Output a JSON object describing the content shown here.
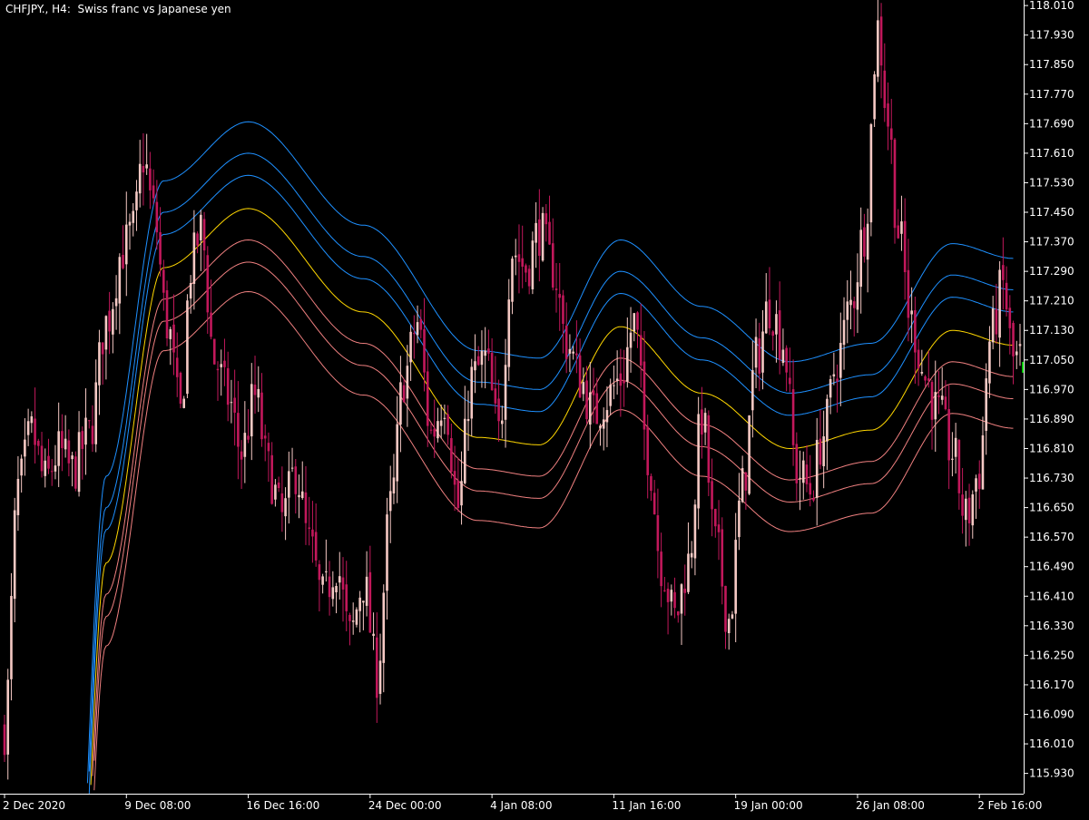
{
  "header": {
    "symbol": "CHFJPY.",
    "timeframe": "H4",
    "description": "Swiss franc vs Japanese yen",
    "title_text": "CHFJPY., H4:  Swiss franc vs Japanese yen"
  },
  "colors": {
    "background": "#000000",
    "axis": "#ffffff",
    "candle_bull": "#f5c9c4",
    "candle_bear": "#c2185b",
    "band_upper": "#1e90ff",
    "band_middle": "#ffd700",
    "band_lower": "#f08080",
    "last_marker": "#00c800"
  },
  "chart_data": {
    "type": "candlestick",
    "y_ticks": [
      "118.010",
      "117.930",
      "117.850",
      "117.770",
      "117.690",
      "117.610",
      "117.530",
      "117.450",
      "117.370",
      "117.290",
      "117.210",
      "117.130",
      "117.050",
      "116.970",
      "116.890",
      "116.810",
      "116.730",
      "116.650",
      "116.570",
      "116.490",
      "116.410",
      "116.330",
      "116.250",
      "116.170",
      "116.090",
      "116.010",
      "115.930"
    ],
    "ylim": [
      115.875,
      118.025
    ],
    "x_ticks": [
      {
        "label": "2 Dec 2020",
        "bar": 0
      },
      {
        "label": "9 Dec 08:00",
        "bar": 36
      },
      {
        "label": "16 Dec 16:00",
        "bar": 72
      },
      {
        "label": "24 Dec 00:00",
        "bar": 108
      },
      {
        "label": "4 Jan 08:00",
        "bar": 144
      },
      {
        "label": "11 Jan 16:00",
        "bar": 180
      },
      {
        "label": "19 Jan 00:00",
        "bar": 216
      },
      {
        "label": "26 Jan 08:00",
        "bar": 252
      },
      {
        "label": "2 Feb 16:00",
        "bar": 288
      }
    ],
    "close_anchors": [
      [
        0,
        116.05
      ],
      [
        4,
        116.7
      ],
      [
        8,
        116.85
      ],
      [
        12,
        116.72
      ],
      [
        16,
        116.8
      ],
      [
        20,
        116.75
      ],
      [
        25,
        116.85
      ],
      [
        30,
        117.15
      ],
      [
        35,
        117.35
      ],
      [
        38,
        117.4
      ],
      [
        41,
        117.6
      ],
      [
        44,
        117.45
      ],
      [
        48,
        117.15
      ],
      [
        52,
        116.9
      ],
      [
        55,
        117.3
      ],
      [
        58,
        117.4
      ],
      [
        62,
        117.05
      ],
      [
        66,
        116.95
      ],
      [
        70,
        116.8
      ],
      [
        74,
        116.95
      ],
      [
        78,
        116.75
      ],
      [
        82,
        116.62
      ],
      [
        86,
        116.75
      ],
      [
        90,
        116.55
      ],
      [
        94,
        116.4
      ],
      [
        98,
        116.5
      ],
      [
        102,
        116.3
      ],
      [
        106,
        116.45
      ],
      [
        110,
        116.2
      ],
      [
        114,
        116.65
      ],
      [
        118,
        117.0
      ],
      [
        122,
        117.15
      ],
      [
        126,
        116.85
      ],
      [
        130,
        116.95
      ],
      [
        134,
        116.65
      ],
      [
        138,
        117.0
      ],
      [
        142,
        117.05
      ],
      [
        146,
        116.85
      ],
      [
        150,
        117.35
      ],
      [
        154,
        117.3
      ],
      [
        158,
        117.4
      ],
      [
        162,
        117.3
      ],
      [
        166,
        117.1
      ],
      [
        170,
        117.0
      ],
      [
        174,
        116.9
      ],
      [
        178,
        116.95
      ],
      [
        182,
        117.0
      ],
      [
        186,
        117.15
      ],
      [
        190,
        116.8
      ],
      [
        194,
        116.5
      ],
      [
        198,
        116.35
      ],
      [
        202,
        116.5
      ],
      [
        206,
        116.9
      ],
      [
        210,
        116.55
      ],
      [
        214,
        116.35
      ],
      [
        218,
        116.7
      ],
      [
        222,
        117.05
      ],
      [
        226,
        117.2
      ],
      [
        230,
        117.1
      ],
      [
        234,
        116.75
      ],
      [
        238,
        116.7
      ],
      [
        242,
        116.85
      ],
      [
        246,
        117.05
      ],
      [
        250,
        117.2
      ],
      [
        254,
        117.4
      ],
      [
        258,
        117.95
      ],
      [
        261,
        117.7
      ],
      [
        264,
        117.4
      ],
      [
        268,
        117.15
      ],
      [
        272,
        117.0
      ],
      [
        276,
        116.9
      ],
      [
        280,
        116.8
      ],
      [
        284,
        116.62
      ],
      [
        288,
        116.75
      ],
      [
        291,
        117.1
      ],
      [
        295,
        117.25
      ],
      [
        298,
        117.05
      ]
    ],
    "bands": {
      "anchors_bar": [
        0,
        18,
        30,
        47,
        72,
        106,
        140,
        158,
        182,
        206,
        232,
        256,
        280,
        298
      ],
      "middle": [
        113.3,
        114.6,
        116.5,
        117.3,
        117.46,
        117.18,
        116.84,
        116.82,
        117.14,
        116.96,
        116.81,
        116.86,
        117.13,
        117.09
      ],
      "offsets": [
        0.235,
        0.15,
        0.09,
        -0.085,
        -0.145,
        -0.225
      ],
      "series": [
        "upper-3",
        "upper-2",
        "upper-1",
        "middle",
        "lower-1",
        "lower-2",
        "lower-3"
      ]
    }
  }
}
